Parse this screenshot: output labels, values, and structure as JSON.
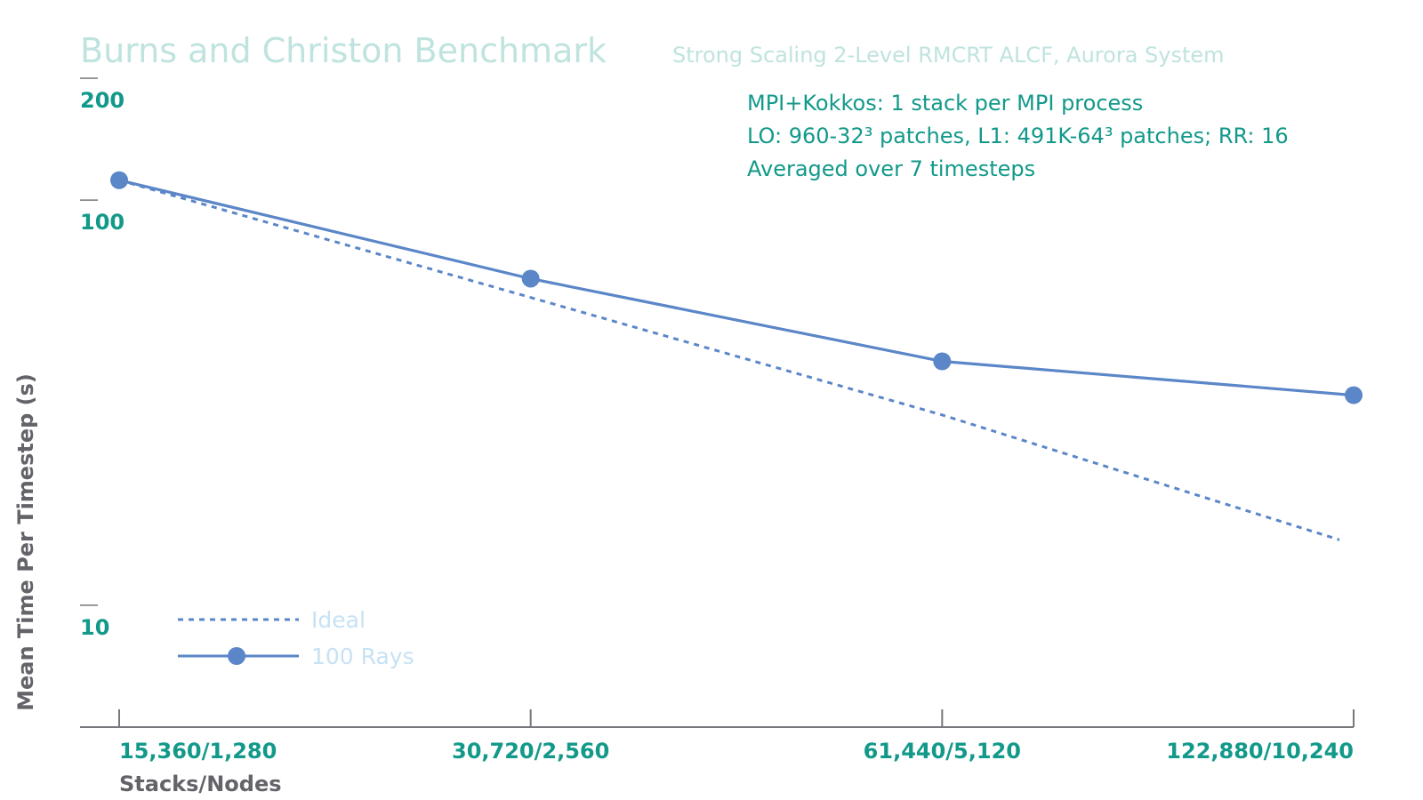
{
  "colors": {
    "title": "#bfe3df",
    "tick": "#12998a",
    "axis_label": "#636369",
    "series": "#5b86c8",
    "axis": "#77777c",
    "legend_text": "#c6e2f4"
  },
  "chart_data": {
    "type": "line",
    "title": "Burns and Christon Benchmark",
    "subtitle": "Strong Scaling 2-Level RMCRT ALCF, Aurora System",
    "xlabel": "Stacks/Nodes",
    "ylabel": "Mean Time Per Timestep (s)",
    "y_scale": "log",
    "ylim": [
      5,
      200
    ],
    "yticks": [
      200,
      100,
      10
    ],
    "grid": false,
    "legend_position": "bottom-left",
    "categories": [
      "15,360/1,280",
      "30,720/2,560",
      "61,440/5,120",
      "122,880/10,240"
    ],
    "x": [
      15360,
      30720,
      61440,
      122880
    ],
    "series": [
      {
        "name": "Ideal",
        "style": "dotted",
        "marker": false,
        "values": [
          112,
          57.5,
          29.5,
          14.5
        ]
      },
      {
        "name": "100 Rays",
        "style": "solid",
        "marker": true,
        "values": [
          112,
          64,
          40,
          33
        ]
      }
    ],
    "annotations": [
      "MPI+Kokkos: 1 stack per MPI process",
      "LO: 960-32³ patches, L1: 491K-64³ patches; RR: 16",
      "Averaged over 7 timesteps"
    ]
  }
}
